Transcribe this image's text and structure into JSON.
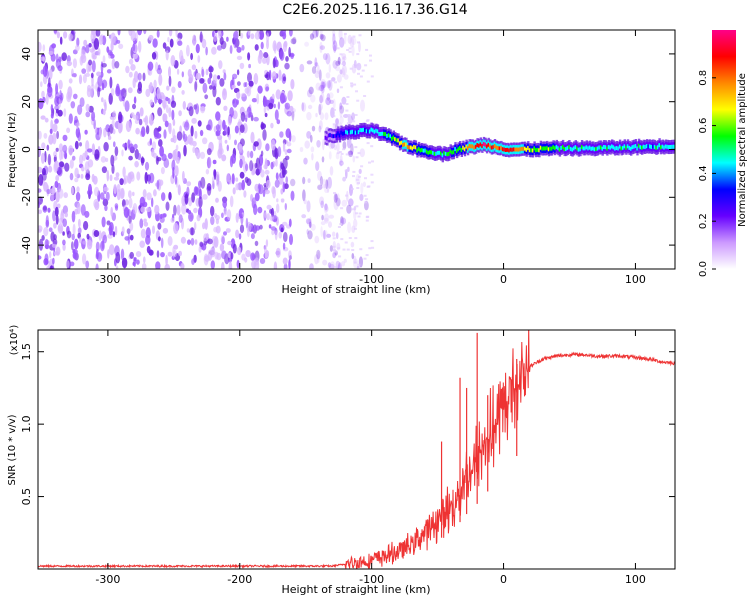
{
  "title": "C2E6.2025.116.17.36.G14",
  "chart_data": [
    {
      "type": "heatmap",
      "xlabel": "Height of straight line (km)",
      "ylabel": "Frequency (Hz)",
      "xlim": [
        -353,
        130
      ],
      "ylim": [
        -50,
        50
      ],
      "x_ticks": [
        -300,
        -200,
        -100,
        0,
        100
      ],
      "y_ticks": [
        -40,
        -20,
        0,
        20,
        40
      ],
      "noise_region_x": [
        -353,
        -125
      ],
      "ridge": {
        "x": [
          -135,
          -120,
          -100,
          -85,
          -75,
          -65,
          -55,
          -45,
          -35,
          -25,
          -15,
          -5,
          5,
          20,
          40,
          70,
          100,
          130
        ],
        "y": [
          5,
          7,
          8,
          5,
          2,
          0,
          -1,
          -2,
          0,
          1,
          2,
          1,
          0,
          0,
          0.5,
          0.5,
          1,
          1.5
        ],
        "amplitude": [
          0.25,
          0.35,
          0.45,
          0.55,
          0.75,
          0.6,
          0.5,
          0.45,
          0.55,
          0.75,
          0.9,
          0.8,
          0.85,
          0.65,
          0.5,
          0.45,
          0.45,
          0.45
        ]
      },
      "colorbar": {
        "label": "Normalized spectral amplitude",
        "ticks": [
          0.0,
          0.2,
          0.4,
          0.6,
          0.8
        ],
        "range": [
          0,
          1
        ],
        "colors": [
          "#ffffff",
          "#cc99ff",
          "#6600ff",
          "#0000ff",
          "#00ffff",
          "#00ff00",
          "#ffff00",
          "#ff8800",
          "#ff0000",
          "#ff0088"
        ]
      }
    },
    {
      "type": "line",
      "xlabel": "Height of straight line (km)",
      "ylabel": "SNR (10 * v/v)",
      "multiplier": "(x10⁴)",
      "xlim": [
        -353,
        130
      ],
      "ylim": [
        0,
        1.65
      ],
      "x_ticks": [
        -300,
        -200,
        -100,
        0,
        100
      ],
      "y_ticks": [
        0.5,
        1.0,
        1.5
      ],
      "y_tick_labels": [
        "0.5",
        "1.0",
        "1.5"
      ],
      "color": "#ee3333",
      "series": [
        {
          "x": [
            -353,
            -200,
            -130,
            -115,
            -100,
            -90,
            -80,
            -70,
            -60,
            -50,
            -45,
            -40,
            -35,
            -30,
            -25,
            -20,
            -18,
            -15,
            -10,
            -5,
            0,
            5,
            10,
            20,
            30,
            40,
            50,
            60,
            70,
            80,
            90,
            100,
            110,
            120,
            130
          ],
          "values": [
            0.02,
            0.02,
            0.02,
            0.04,
            0.06,
            0.09,
            0.12,
            0.17,
            0.25,
            0.33,
            0.38,
            0.42,
            0.5,
            0.6,
            0.68,
            0.75,
            0.8,
            0.85,
            0.92,
            1.0,
            1.1,
            1.2,
            1.3,
            1.4,
            1.45,
            1.47,
            1.48,
            1.48,
            1.47,
            1.47,
            1.47,
            1.46,
            1.45,
            1.43,
            1.42
          ]
        }
      ],
      "spikes": [
        {
          "x": -47,
          "y": 0.88
        },
        {
          "x": -33,
          "y": 1.32
        },
        {
          "x": -28,
          "y": 1.25
        },
        {
          "x": -20,
          "y": 1.63
        },
        {
          "x": -12,
          "y": 1.2
        },
        {
          "x": 10,
          "y": 1.45
        }
      ]
    }
  ]
}
